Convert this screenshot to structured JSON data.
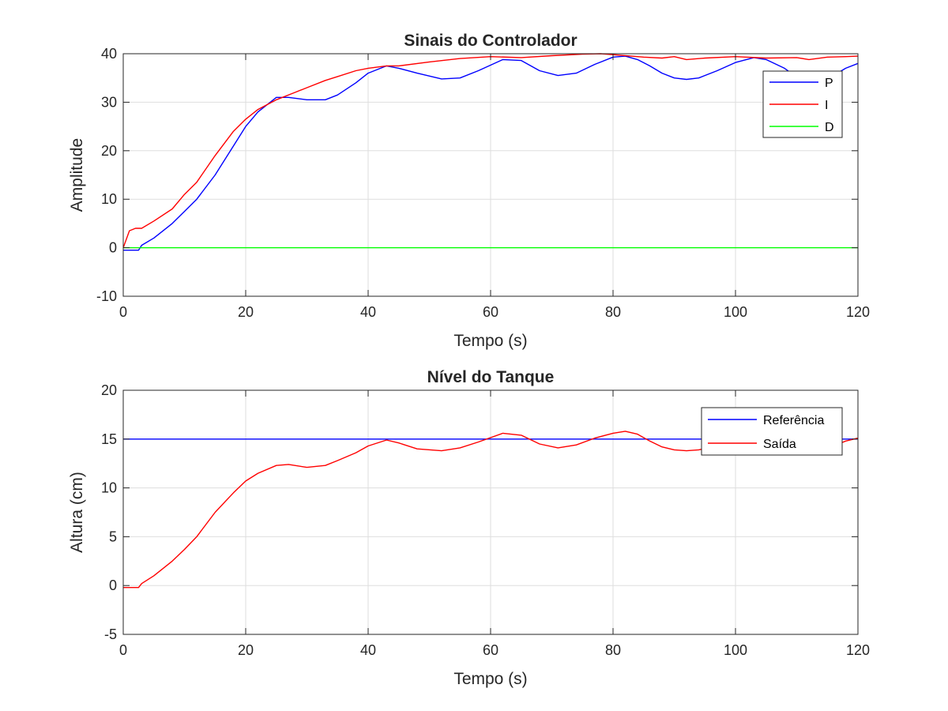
{
  "chart_data": [
    {
      "type": "line",
      "title": "Sinais do Controlador",
      "xlabel": "Tempo (s)",
      "ylabel": "Amplitude",
      "xlim": [
        0,
        120
      ],
      "ylim": [
        -10,
        40
      ],
      "xticks": [
        "0",
        "20",
        "40",
        "60",
        "80",
        "100",
        "120"
      ],
      "yticks": [
        "-10",
        "0",
        "10",
        "20",
        "30",
        "40"
      ],
      "grid": true,
      "legend_position": "top-right",
      "series": [
        {
          "name": "P",
          "color": "#0000ff",
          "x": [
            0,
            1,
            2.5,
            3,
            5,
            8,
            10,
            12,
            15,
            18,
            20,
            22,
            25,
            27,
            30,
            33,
            35,
            38,
            40,
            43,
            45,
            48,
            52,
            55,
            58,
            62,
            65,
            68,
            71,
            74,
            77,
            80,
            82,
            84,
            86,
            88,
            90,
            92,
            94,
            97,
            100,
            103,
            105,
            108,
            110,
            113,
            116,
            118,
            120
          ],
          "y": [
            -0.5,
            -0.5,
            -0.5,
            0.5,
            2,
            5,
            7.5,
            10,
            15,
            21,
            25,
            28,
            31,
            31,
            30.5,
            30.5,
            31.5,
            34,
            36,
            37.5,
            37,
            36,
            34.8,
            35,
            36.5,
            38.8,
            38.6,
            36.5,
            35.5,
            36,
            37.8,
            39.3,
            39.5,
            38.8,
            37.5,
            36,
            35,
            34.7,
            35,
            36.5,
            38.2,
            39.2,
            38.8,
            37,
            35.2,
            34.8,
            35.5,
            37,
            38
          ]
        },
        {
          "name": "I",
          "color": "#ff0000",
          "x": [
            0,
            1,
            2,
            3,
            5,
            8,
            10,
            12,
            15,
            18,
            20,
            22,
            25,
            28,
            30,
            33,
            35,
            38,
            40,
            43,
            45,
            50,
            55,
            60,
            65,
            70,
            75,
            78,
            80,
            85,
            88,
            90,
            92,
            95,
            100,
            105,
            110,
            112,
            115,
            118,
            120
          ],
          "y": [
            0,
            3.5,
            4,
            4,
            5.5,
            8,
            11,
            13.5,
            19,
            24,
            26.5,
            28.5,
            30.5,
            32,
            33,
            34.5,
            35.3,
            36.5,
            37,
            37.5,
            37.5,
            38.3,
            39,
            39.4,
            39.2,
            39.6,
            39.9,
            40,
            39.8,
            39.3,
            39.1,
            39.4,
            38.8,
            39.1,
            39.4,
            39.1,
            39.2,
            38.8,
            39.3,
            39.4,
            39.5
          ]
        },
        {
          "name": "D",
          "color": "#00ff00",
          "x": [
            0,
            120
          ],
          "y": [
            0,
            0
          ]
        }
      ]
    },
    {
      "type": "line",
      "title": "Nível do Tanque",
      "xlabel": "Tempo (s)",
      "ylabel": "Altura (cm)",
      "xlim": [
        0,
        120
      ],
      "ylim": [
        -5,
        20
      ],
      "xticks": [
        "0",
        "20",
        "40",
        "60",
        "80",
        "100",
        "120"
      ],
      "yticks": [
        "-5",
        "0",
        "5",
        "10",
        "15",
        "20"
      ],
      "grid": true,
      "legend_position": "top-right",
      "series": [
        {
          "name": "Referência",
          "color": "#0000ff",
          "x": [
            0,
            120
          ],
          "y": [
            15,
            15
          ]
        },
        {
          "name": "Saída",
          "color": "#ff0000",
          "x": [
            0,
            1,
            2.5,
            3,
            5,
            8,
            10,
            12,
            15,
            18,
            20,
            22,
            25,
            27,
            30,
            33,
            35,
            38,
            40,
            43,
            45,
            48,
            52,
            55,
            58,
            62,
            65,
            68,
            71,
            74,
            77,
            80,
            82,
            84,
            86,
            88,
            90,
            92,
            94,
            97,
            100,
            103,
            105,
            108,
            110,
            113,
            116,
            118,
            120
          ],
          "y": [
            -0.2,
            -0.2,
            -0.2,
            0.2,
            1,
            2.5,
            3.7,
            5,
            7.5,
            9.5,
            10.7,
            11.5,
            12.3,
            12.4,
            12.1,
            12.3,
            12.8,
            13.6,
            14.3,
            14.9,
            14.6,
            14,
            13.8,
            14.1,
            14.7,
            15.6,
            15.4,
            14.5,
            14.1,
            14.4,
            15.1,
            15.6,
            15.8,
            15.5,
            14.8,
            14.2,
            13.9,
            13.8,
            13.9,
            14.3,
            14.9,
            15.2,
            15.1,
            14.7,
            14.2,
            14,
            14.3,
            14.8,
            15.1
          ]
        }
      ]
    }
  ]
}
